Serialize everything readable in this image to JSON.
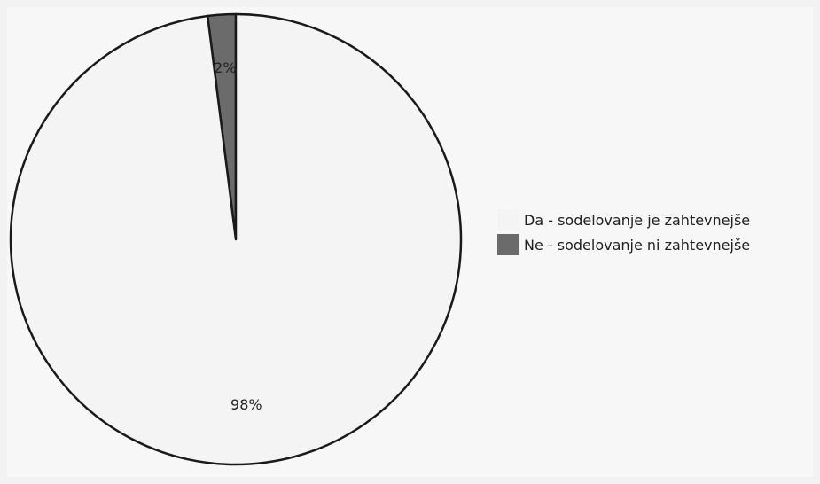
{
  "chart_data": {
    "type": "pie",
    "slices": [
      {
        "label": "Da - sodelovanje je zahtevnejše",
        "value": 98,
        "value_label": "98%",
        "color": "#f4f4f4"
      },
      {
        "label": "Ne - sodelovanje ni zahtevnejše",
        "value": 2,
        "value_label": "2%",
        "color": "#6b6b6b"
      }
    ],
    "legend": {
      "placement": "right",
      "items": [
        {
          "label": "Da - sodelovanje je zahtevnejše",
          "color": "#f4f4f4"
        },
        {
          "label": "Ne - sodelovanje ni zahtevnejše",
          "color": "#6b6b6b"
        }
      ]
    },
    "colors": {
      "outline": "#1a1a1a",
      "background": "#f7f7f7"
    }
  }
}
